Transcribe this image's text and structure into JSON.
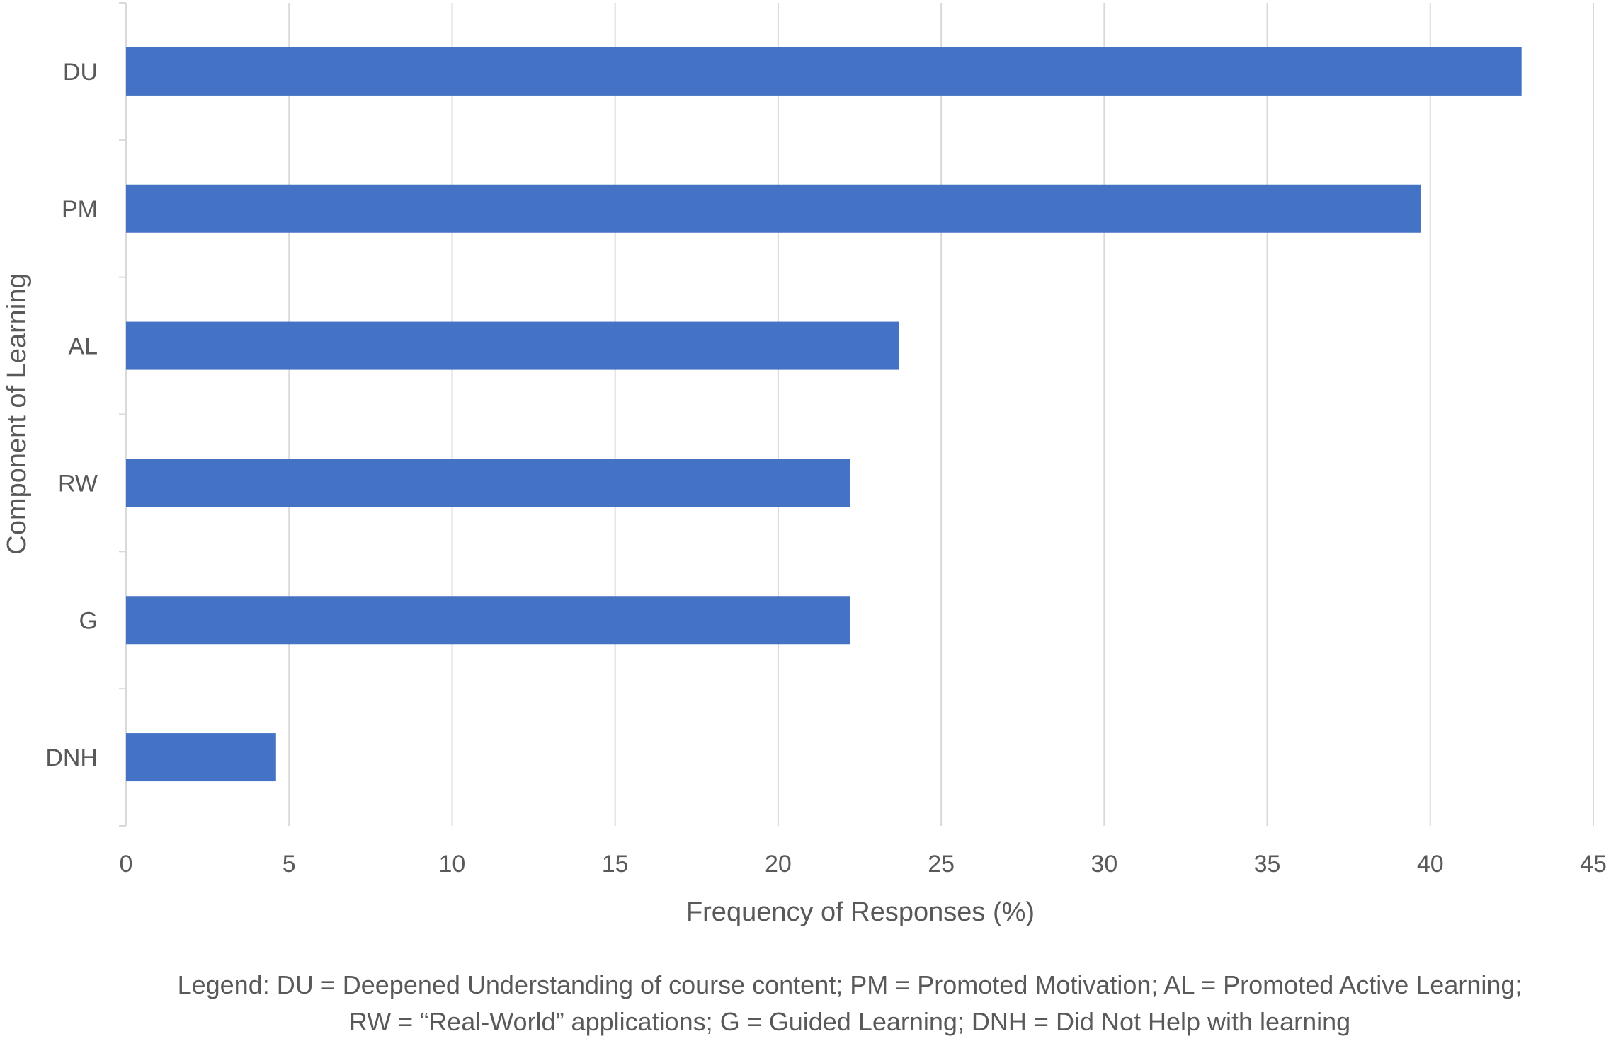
{
  "chart_data": {
    "type": "bar",
    "orientation": "horizontal",
    "categories": [
      "DU",
      "PM",
      "AL",
      "RW",
      "G",
      "DNH"
    ],
    "values": [
      42.8,
      39.7,
      23.7,
      22.2,
      22.2,
      4.6
    ],
    "xlabel": "Frequency of Responses (%)",
    "ylabel": "Component of Learning",
    "xlim": [
      0,
      45
    ],
    "xticks": [
      0,
      5,
      10,
      15,
      20,
      25,
      30,
      35,
      40,
      45
    ],
    "grid": "vertical",
    "bar_color": "#4472C4",
    "legend_note": "Legend: DU = Deepened Understanding of course content; PM = Promoted Motivation; AL = Promoted Active Learning; RW = “Real-World” applications; G = Guided Learning; DNH = Did Not Help with learning"
  }
}
